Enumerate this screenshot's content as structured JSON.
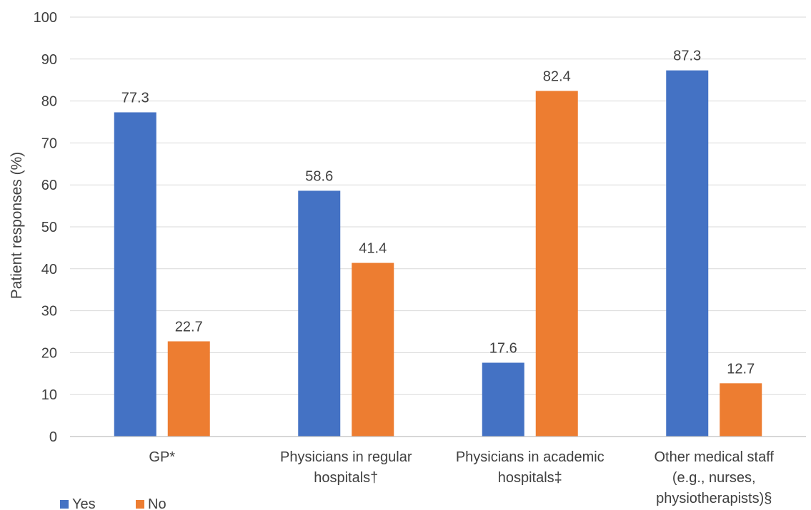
{
  "chart_data": {
    "type": "bar",
    "title": "",
    "xlabel": "",
    "ylabel": "Patient responses (%)",
    "ylim": [
      0,
      100
    ],
    "yticks": [
      0,
      10,
      20,
      30,
      40,
      50,
      60,
      70,
      80,
      90,
      100
    ],
    "grid": true,
    "legend_position": "bottom-left",
    "categories": [
      [
        "GP*"
      ],
      [
        "Physicians in regular",
        "hospitals†"
      ],
      [
        "Physicians in academic",
        "hospitals‡"
      ],
      [
        "Other medical staff",
        "(e.g., nurses,",
        "physiotherapists)§"
      ]
    ],
    "series": [
      {
        "name": "Yes",
        "color": "#4472c4",
        "values": [
          77.3,
          58.6,
          17.6,
          87.3
        ]
      },
      {
        "name": "No",
        "color": "#ed7d31",
        "values": [
          22.7,
          41.4,
          82.4,
          12.7
        ]
      }
    ]
  }
}
